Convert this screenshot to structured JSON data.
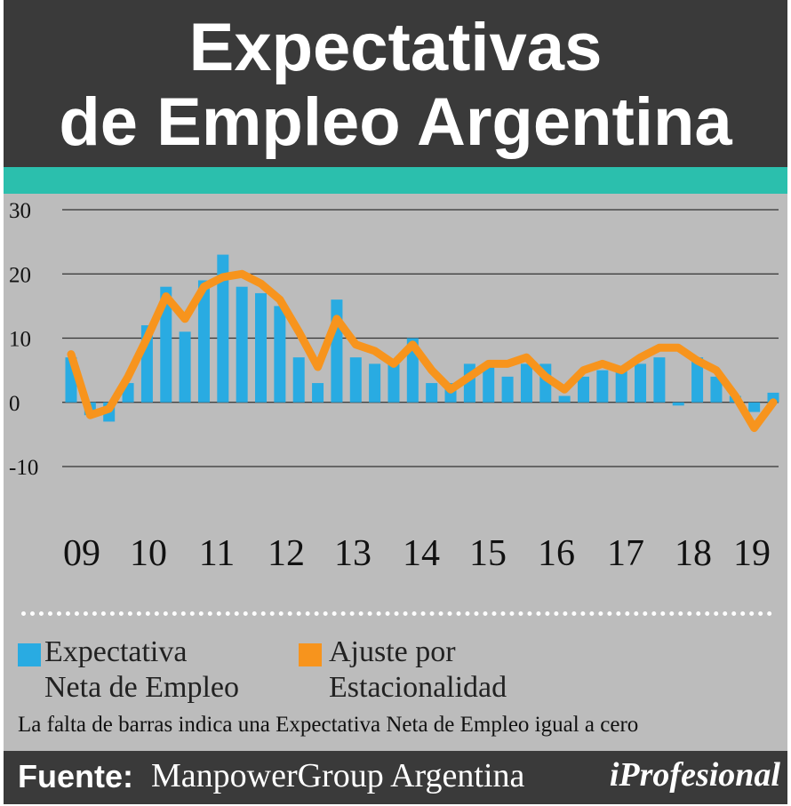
{
  "header": {
    "title_line1": "Expectativas",
    "title_line2": "de Empleo Argentina"
  },
  "legend": {
    "series1_line1": "Expectativa",
    "series1_line2": "Neta de Empleo",
    "series2_line1": "Ajuste por",
    "series2_line2": "Estacionalidad"
  },
  "note": "La falta de barras indica una Expectativa Neta de Empleo igual a cero",
  "footer": {
    "label": "Fuente:",
    "source": "ManpowerGroup Argentina",
    "brand": "iProfesional"
  },
  "colors": {
    "bar": "#29abe2",
    "line": "#f7941d",
    "header": "#3a3a3a",
    "teal": "#2bbfad",
    "panel": "#bcbcbc"
  },
  "chart_data": {
    "type": "bar",
    "title": "",
    "ylim": [
      -10,
      30
    ],
    "yticks": [
      30,
      20,
      10,
      0,
      -10
    ],
    "grid": true,
    "x_labels": [
      "09",
      "10",
      "11",
      "12",
      "13",
      "14",
      "15",
      "16",
      "17",
      "18",
      "19"
    ],
    "series": [
      {
        "name": "Expectativa Neta de Empleo",
        "kind": "bar",
        "values": [
          7,
          -2,
          -3,
          3,
          12,
          18,
          11,
          19,
          23,
          18,
          17,
          15,
          7,
          3,
          16,
          7,
          6,
          6,
          10,
          3,
          3,
          6,
          6,
          4,
          6,
          6,
          1,
          4,
          5,
          5,
          6,
          7,
          -0.5,
          7,
          4,
          1,
          -1.5,
          1.5
        ]
      },
      {
        "name": "Ajuste por Estacionalidad",
        "kind": "line",
        "values": [
          7.5,
          -2,
          -1,
          4,
          10,
          16.5,
          13,
          18,
          19.5,
          20,
          18.5,
          16,
          11,
          5.5,
          13,
          9,
          8,
          6,
          9,
          5,
          2,
          4,
          6,
          6,
          7,
          4,
          2,
          5,
          6,
          5,
          7,
          8.5,
          8.5,
          6.5,
          5,
          1,
          -4,
          0
        ]
      }
    ]
  }
}
